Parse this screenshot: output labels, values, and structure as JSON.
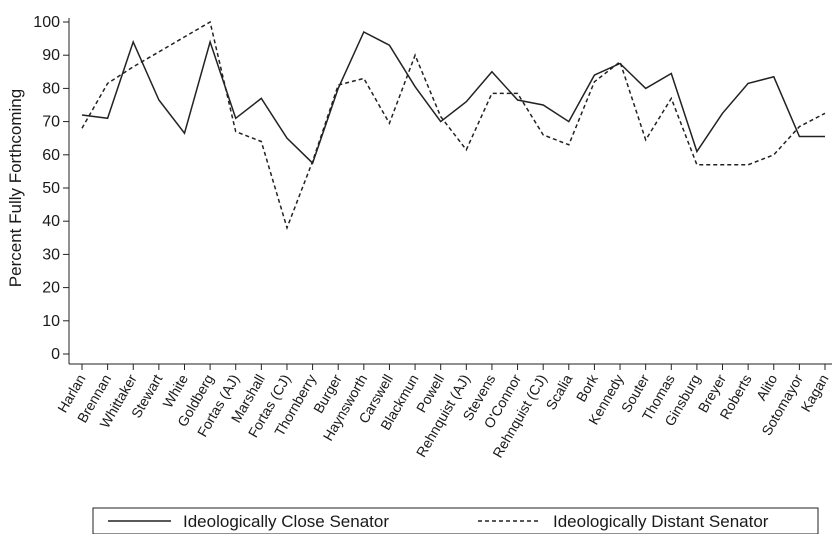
{
  "chart_data": {
    "type": "line",
    "title": "",
    "xlabel": "",
    "ylabel": "Percent Fully Forthcoming",
    "ylim": [
      0,
      100
    ],
    "yticks": [
      0,
      10,
      20,
      30,
      40,
      50,
      60,
      70,
      80,
      90,
      100
    ],
    "grid": false,
    "legend_position": "bottom",
    "categories": [
      "Harlan",
      "Brennan",
      "Whittaker",
      "Stewart",
      "White",
      "Goldberg",
      "Fortas (AJ)",
      "Marshall",
      "Fortas (CJ)",
      "Thornberry",
      "Burger",
      "Haynsworth",
      "Carswell",
      "Blackmun",
      "Powell",
      "Rehnquist (AJ)",
      "Stevens",
      "O'Connor",
      "Rehnquist (CJ)",
      "Scalia",
      "Bork",
      "Kennedy",
      "Souter",
      "Thomas",
      "Ginsburg",
      "Breyer",
      "Roberts",
      "Alito",
      "Sotomayor",
      "Kagan"
    ],
    "series": [
      {
        "name": "Ideologically Close Senator",
        "color": "#222222",
        "dash": "solid",
        "values": [
          72,
          71,
          94,
          76.5,
          66.5,
          94,
          71,
          77,
          65,
          57.5,
          80,
          97,
          93,
          80.5,
          70,
          76,
          85,
          76.5,
          75,
          70,
          84,
          87.5,
          80,
          84.5,
          61,
          72.5,
          81.5,
          83.5,
          65.5,
          65.5
        ]
      },
      {
        "name": "Ideologically Distant Senator",
        "color": "#222222",
        "dash": "dashed",
        "values": [
          68,
          81.5,
          86.5,
          91,
          95.5,
          100,
          67,
          64,
          38,
          58,
          81,
          83,
          69.5,
          90,
          71.5,
          61.5,
          78.5,
          78.5,
          66,
          63,
          82,
          88,
          64.5,
          77,
          57,
          57,
          57,
          60,
          68.5,
          72.5
        ]
      }
    ]
  }
}
